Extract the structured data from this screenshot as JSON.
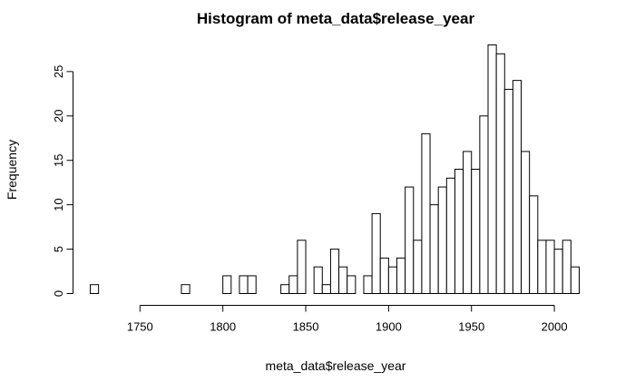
{
  "chart_data": {
    "type": "bar",
    "title": "Histogram of meta_data$release_year",
    "xlabel": "meta_data$release_year",
    "ylabel": "Frequency",
    "bin_width": 5,
    "bins_x_start": [
      1720,
      1725,
      1730,
      1735,
      1740,
      1745,
      1750,
      1755,
      1760,
      1765,
      1770,
      1775,
      1780,
      1785,
      1790,
      1795,
      1800,
      1805,
      1810,
      1815,
      1820,
      1825,
      1830,
      1835,
      1840,
      1845,
      1850,
      1855,
      1860,
      1865,
      1870,
      1875,
      1880,
      1885,
      1890,
      1895,
      1900,
      1905,
      1910,
      1915,
      1920,
      1925,
      1930,
      1935,
      1940,
      1945,
      1950,
      1955,
      1960,
      1965,
      1970,
      1975,
      1980,
      1985,
      1990,
      1995,
      2000,
      2005,
      2010
    ],
    "values": [
      1,
      0,
      0,
      0,
      0,
      0,
      0,
      0,
      0,
      0,
      0,
      1,
      0,
      0,
      0,
      0,
      2,
      0,
      2,
      2,
      0,
      0,
      0,
      1,
      2,
      6,
      0,
      3,
      1,
      5,
      3,
      2,
      0,
      2,
      9,
      4,
      3,
      4,
      12,
      6,
      18,
      10,
      12,
      13,
      14,
      16,
      14,
      20,
      28,
      27,
      23,
      24,
      16,
      11,
      6,
      6,
      5,
      6,
      3
    ],
    "xlim": [
      1720,
      2015
    ],
    "ylim": [
      0,
      28
    ],
    "x_ticks": [
      1750,
      1800,
      1850,
      1900,
      1950,
      2000
    ],
    "y_ticks": [
      0,
      5,
      10,
      15,
      20,
      25
    ],
    "grid": false
  }
}
